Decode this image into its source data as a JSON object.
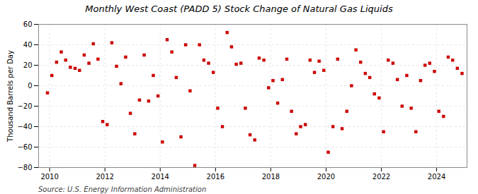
{
  "chart_data": {
    "type": "scatter",
    "title": "Monthly West Coast (PADD 5) Stock Change of Natural Gas Liquids",
    "ylabel": "Thousand Barrels per Day",
    "source": "Source: U.S. Energy Information Administration",
    "color": "#cc0000",
    "marker": "square",
    "grid": true,
    "xlim": [
      2009.6,
      2025.1
    ],
    "xticks": [
      2010,
      2012,
      2014,
      2016,
      2018,
      2020,
      2022,
      2024
    ],
    "ylim": [
      -80,
      60
    ],
    "yticks": [
      -80,
      -60,
      -40,
      -20,
      0,
      20,
      40,
      60
    ],
    "x": [
      2009.92,
      2010.08,
      2010.25,
      2010.42,
      2010.58,
      2010.75,
      2010.92,
      2011.08,
      2011.25,
      2011.42,
      2011.58,
      2011.75,
      2011.92,
      2012.08,
      2012.25,
      2012.42,
      2012.58,
      2012.75,
      2012.92,
      2013.08,
      2013.25,
      2013.42,
      2013.58,
      2013.75,
      2013.92,
      2014.08,
      2014.25,
      2014.42,
      2014.58,
      2014.75,
      2014.92,
      2015.08,
      2015.25,
      2015.42,
      2015.58,
      2015.75,
      2015.92,
      2016.08,
      2016.25,
      2016.42,
      2016.58,
      2016.75,
      2016.92,
      2017.08,
      2017.25,
      2017.42,
      2017.58,
      2017.75,
      2017.92,
      2018.08,
      2018.25,
      2018.42,
      2018.58,
      2018.75,
      2018.92,
      2019.08,
      2019.25,
      2019.42,
      2019.58,
      2019.75,
      2019.92,
      2020.08,
      2020.25,
      2020.42,
      2020.58,
      2020.75,
      2020.92,
      2021.08,
      2021.25,
      2021.42,
      2021.58,
      2021.75,
      2021.92,
      2022.08,
      2022.25,
      2022.42,
      2022.58,
      2022.75,
      2022.92,
      2023.08,
      2023.25,
      2023.42,
      2023.58,
      2023.75,
      2023.92,
      2024.08,
      2024.25,
      2024.42,
      2024.58,
      2024.75,
      2024.92
    ],
    "values": [
      -7,
      10,
      23,
      33,
      25,
      18,
      17,
      15,
      30,
      22,
      41,
      26,
      -35,
      -38,
      42,
      19,
      2,
      28,
      -27,
      -47,
      -14,
      30,
      -15,
      10,
      -10,
      -55,
      45,
      33,
      8,
      -50,
      40,
      -5,
      -78,
      40,
      25,
      22,
      13,
      -22,
      -40,
      52,
      38,
      21,
      22,
      -22,
      -48,
      -53,
      27,
      25,
      -2,
      5,
      -17,
      6,
      26,
      -25,
      -47,
      -40,
      -38,
      25,
      13,
      24,
      15,
      -65,
      -40,
      26,
      -42,
      -25,
      0,
      35,
      23,
      12,
      8,
      -8,
      -12,
      -45,
      25,
      22,
      6,
      -20,
      10,
      -22,
      -45,
      5,
      20,
      22,
      14,
      -25,
      -30,
      28,
      25,
      17,
      12
    ]
  }
}
